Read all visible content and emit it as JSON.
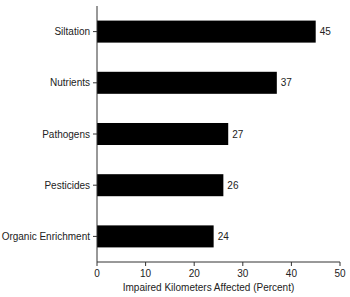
{
  "chart_data": {
    "type": "bar",
    "orientation": "horizontal",
    "categories": [
      "Siltation",
      "Nutrients",
      "Pathogens",
      "Pesticides",
      "Organic Enrichment"
    ],
    "values": [
      45,
      37,
      27,
      26,
      24
    ],
    "color": "#000000",
    "xlabel": "Impaired Kilometers Affected (Percent)",
    "xlim": [
      0,
      50
    ],
    "xticks": [
      0,
      10,
      20,
      30,
      40,
      50
    ],
    "data_labels": true,
    "grid": false
  }
}
